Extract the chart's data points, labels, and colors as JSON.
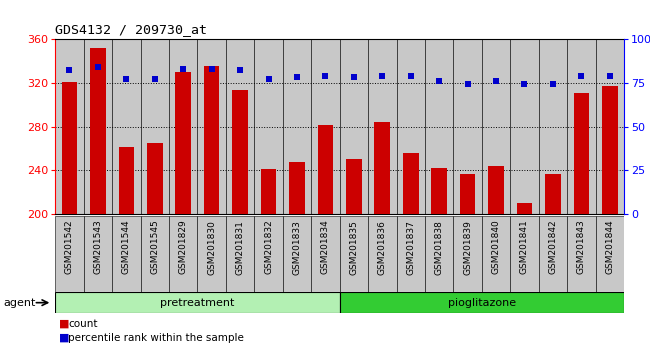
{
  "title": "GDS4132 / 209730_at",
  "categories": [
    "GSM201542",
    "GSM201543",
    "GSM201544",
    "GSM201545",
    "GSM201829",
    "GSM201830",
    "GSM201831",
    "GSM201832",
    "GSM201833",
    "GSM201834",
    "GSM201835",
    "GSM201836",
    "GSM201837",
    "GSM201838",
    "GSM201839",
    "GSM201840",
    "GSM201841",
    "GSM201842",
    "GSM201843",
    "GSM201844"
  ],
  "counts": [
    321,
    352,
    261,
    265,
    330,
    335,
    313,
    241,
    248,
    281,
    250,
    284,
    256,
    242,
    237,
    244,
    210,
    237,
    311,
    317
  ],
  "percentiles": [
    82,
    84,
    77,
    77,
    83,
    83,
    82,
    77,
    78,
    79,
    78,
    79,
    79,
    76,
    74,
    76,
    74,
    74,
    79,
    79
  ],
  "pretreatment_count": 10,
  "pioglitazone_count": 10,
  "ylim_left": [
    200,
    360
  ],
  "ylim_right": [
    0,
    100
  ],
  "yticks_left": [
    200,
    240,
    280,
    320,
    360
  ],
  "yticks_right": [
    0,
    25,
    50,
    75,
    100
  ],
  "bar_color": "#cc0000",
  "dot_color": "#0000cc",
  "pretreatment_color": "#b3f0b3",
  "pioglitazone_color": "#33cc33",
  "bg_color": "#c8c8c8",
  "agent_label": "agent",
  "pretreatment_label": "pretreatment",
  "pioglitazone_label": "pioglitazone",
  "legend_count_label": "count",
  "legend_pct_label": "percentile rank within the sample"
}
